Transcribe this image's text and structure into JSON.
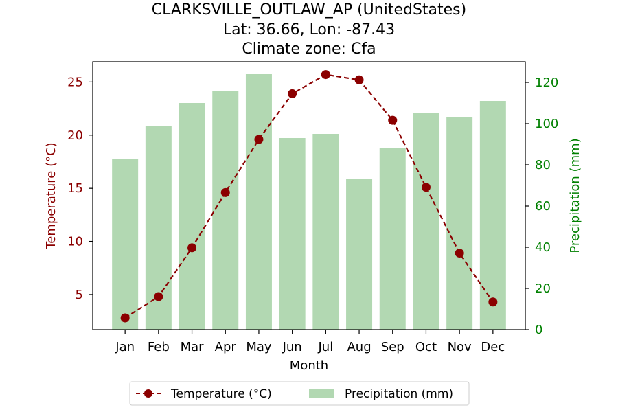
{
  "chart_data": {
    "type": "bar+line",
    "title": [
      "CLARKSVILLE_OUTLAW_AP (UnitedStates)",
      "Lat: 36.66, Lon: -87.43",
      "Climate zone: Cfa"
    ],
    "xlabel": "Month",
    "ylabel_left": "Temperature (°C)",
    "ylabel_right": "Precipitation (mm)",
    "categories": [
      "Jan",
      "Feb",
      "Mar",
      "Apr",
      "May",
      "Jun",
      "Jul",
      "Aug",
      "Sep",
      "Oct",
      "Nov",
      "Dec"
    ],
    "series": [
      {
        "name": "Temperature (°C)",
        "type": "line",
        "axis": "left",
        "color": "#8b0000",
        "values": [
          2.8,
          4.8,
          9.4,
          14.6,
          19.6,
          23.9,
          25.7,
          25.2,
          21.4,
          15.1,
          8.9,
          4.3
        ]
      },
      {
        "name": "Precipitation (mm)",
        "type": "bar",
        "axis": "right",
        "color": "#b2d8b2",
        "values": [
          83,
          99,
          110,
          116,
          124,
          93,
          95,
          73,
          88,
          105,
          103,
          111
        ]
      }
    ],
    "ylim_left": [
      1.7,
      26.9
    ],
    "ylim_right": [
      0,
      130
    ],
    "yticks_left": [
      5,
      10,
      15,
      20,
      25
    ],
    "yticks_right": [
      0,
      20,
      40,
      60,
      80,
      100,
      120
    ],
    "left_axis_color": "#8b0000",
    "right_axis_color": "#008000",
    "grid": false,
    "legend_position": "bottom-center"
  }
}
